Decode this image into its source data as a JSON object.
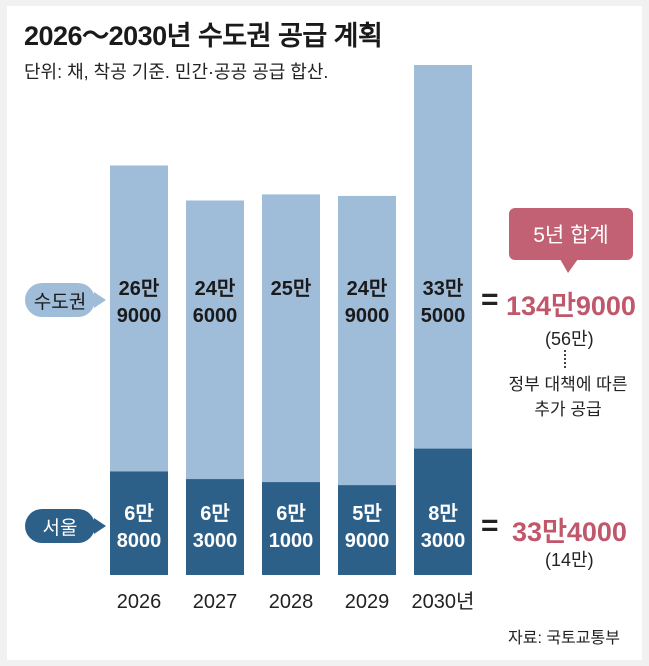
{
  "header": {
    "title": "2026～2030년 수도권 공급 계획",
    "subtitle": "단위: 채, 착공 기준. 민간·공공 공급 합산."
  },
  "legend": {
    "metro": "수도권",
    "seoul": "서울"
  },
  "summary": {
    "badge": "5년 합계",
    "equals": "=",
    "metro_total": "134만9000",
    "metro_gov": "(56만)",
    "metro_note_line1": "정부 대책에 따른",
    "metro_note_line2": "추가 공급",
    "seoul_total": "33만4000",
    "seoul_gov": "(14만)"
  },
  "source": "자료: 국토교통부",
  "colors": {
    "metro_bar": "#9fbcd8",
    "seoul_bar": "#2d6089",
    "accent": "#c0576a"
  },
  "chart_data": {
    "type": "bar",
    "stacked": true,
    "title": "2026～2030년 수도권 공급 계획",
    "ylabel": "",
    "xlabel": "",
    "categories": [
      "2026",
      "2027",
      "2028",
      "2029",
      "2030년"
    ],
    "series": [
      {
        "name": "서울",
        "values": [
          68000,
          63000,
          61000,
          59000,
          83000
        ],
        "labels": [
          [
            "6만",
            "8000"
          ],
          [
            "6만",
            "3000"
          ],
          [
            "6만",
            "1000"
          ],
          [
            "5만",
            "9000"
          ],
          [
            "8만",
            "3000"
          ]
        ]
      },
      {
        "name": "수도권",
        "values": [
          269000,
          246000,
          250000,
          249000,
          335000
        ],
        "labels": [
          [
            "26만",
            "9000"
          ],
          [
            "24만",
            "6000"
          ],
          [
            "25만",
            "",
            ""
          ],
          [
            "24만",
            "9000"
          ],
          [
            "33만",
            "5000"
          ]
        ],
        "note": "seoul bar is a subset of the metro total; bar height shows the 수도권 total"
      }
    ]
  }
}
